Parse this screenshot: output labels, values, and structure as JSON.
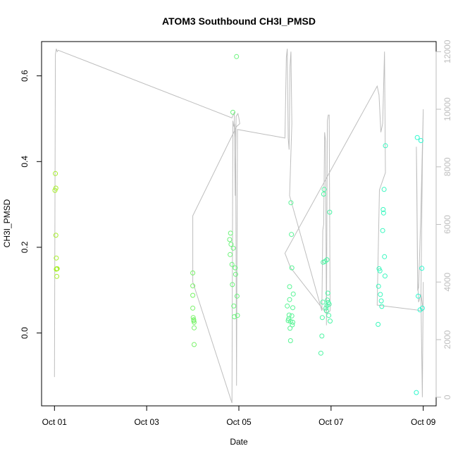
{
  "chart_data": {
    "type": "scatter",
    "title": "ATOM3 Southbound CH3I_PMSD",
    "xlabel": "Date",
    "ylabel": "CH3I_PMSD",
    "x_ticks": [
      {
        "day": 1,
        "label": "Oct 01"
      },
      {
        "day": 3,
        "label": "Oct 03"
      },
      {
        "day": 5,
        "label": "Oct 05"
      },
      {
        "day": 7,
        "label": "Oct 07"
      },
      {
        "day": 9,
        "label": "Oct 09"
      }
    ],
    "y_ticks": [
      0.0,
      0.2,
      0.4,
      0.6
    ],
    "y_tick_labels": [
      "0.0",
      "0.2",
      "0.4",
      "0.6"
    ],
    "y_right_ticks": [
      0,
      2000,
      4000,
      6000,
      8000,
      10000,
      12000
    ],
    "y_right_tick_labels": [
      "0",
      "2000",
      "4000",
      "6000",
      "8000",
      "10000",
      "12000"
    ],
    "xlim": [
      0.72,
      9.28
    ],
    "ylim": [
      -0.17,
      0.68
    ],
    "y_right_lim": [
      -300,
      12350
    ],
    "grid": false,
    "legend": "none",
    "colors": {
      "line": "#bebebe",
      "right_axis": "#bebebe",
      "point_ramp": [
        "#a6ee2a",
        "#2cf8d0"
      ]
    },
    "series": [
      {
        "kind": "points",
        "x": [
          1.01,
          1.02,
          1.03,
          1.03,
          1.04,
          1.04,
          1.05,
          1.05,
          1.06,
          4.0,
          4.0,
          4.0,
          4.0,
          4.01,
          4.02,
          4.02,
          4.03,
          4.03,
          4.03,
          4.8,
          4.81,
          4.82,
          4.83,
          4.85,
          4.86,
          4.87,
          4.88,
          4.89,
          4.9,
          4.92,
          4.93,
          4.95,
          4.96,
          4.97,
          6.05,
          6.07,
          6.08,
          6.09,
          6.1,
          6.1,
          6.11,
          6.12,
          6.12,
          6.13,
          6.14,
          6.15,
          6.15,
          6.16,
          6.17,
          6.17,
          6.18,
          6.78,
          6.8,
          6.81,
          6.82,
          6.83,
          6.84,
          6.85,
          6.87,
          6.89,
          6.9,
          6.91,
          6.91,
          6.92,
          6.93,
          6.94,
          6.95,
          6.96,
          6.97,
          6.98,
          8.02,
          8.03,
          8.04,
          8.06,
          8.07,
          8.09,
          8.1,
          8.12,
          8.13,
          8.14,
          8.15,
          8.16,
          8.17,
          8.18,
          8.85,
          8.87,
          8.89,
          8.93,
          8.95,
          8.97,
          8.98
        ],
        "y": [
          0.333,
          0.372,
          0.338,
          0.228,
          0.175,
          0.149,
          0.15,
          0.132,
          0.15,
          0.14,
          0.11,
          0.088,
          0.058,
          0.036,
          0.029,
          0.031,
          0.025,
          0.012,
          -0.027,
          0.218,
          0.183,
          0.233,
          0.207,
          0.16,
          0.113,
          0.515,
          0.198,
          0.063,
          0.038,
          0.152,
          0.137,
          0.645,
          0.086,
          0.041,
          0.063,
          0.029,
          0.033,
          0.042,
          0.078,
          0.108,
          0.011,
          0.027,
          -0.018,
          0.304,
          0.23,
          0.152,
          0.04,
          0.019,
          0.059,
          0.025,
          0.091,
          -0.047,
          -0.007,
          0.036,
          0.072,
          0.165,
          0.324,
          0.335,
          0.167,
          0.058,
          0.052,
          0.064,
          0.171,
          0.077,
          0.093,
          0.071,
          0.041,
          0.067,
          0.282,
          0.028,
          0.02,
          0.109,
          0.15,
          0.145,
          0.09,
          0.075,
          0.062,
          0.239,
          0.288,
          0.28,
          0.335,
          0.178,
          0.133,
          0.437,
          -0.139,
          0.456,
          0.086,
          0.054,
          0.449,
          0.151,
          0.058
        ]
      },
      {
        "kind": "line",
        "axis": "right",
        "x": [
          1.0,
          1.02,
          1.04,
          1.06,
          1.08,
          4.85,
          4.86,
          4.88,
          4.9,
          4.92,
          4.94,
          4.96,
          4.98,
          5.0,
          5.02,
          4.95,
          4.0,
          4.0,
          4.85,
          4.87,
          4.89,
          4.91,
          4.93,
          4.95,
          4.97,
          6.0,
          6.03,
          6.05,
          6.07,
          6.09,
          6.11,
          6.13,
          6.15,
          6.1,
          6.8,
          6.82,
          6.84,
          6.86,
          6.88,
          6.9,
          6.92,
          6.94,
          6.96,
          6.98,
          6.9,
          6.12,
          6.0,
          8.0,
          8.04,
          8.08,
          8.12,
          8.16,
          8.18,
          8.05,
          8.0,
          9.0,
          8.95,
          8.9,
          8.88,
          8.86,
          8.85,
          8.88,
          8.9,
          8.95,
          9.0,
          8.98,
          8.95,
          8.98,
          9.0
        ],
        "y": [
          700,
          11900,
          12100,
          12000,
          12050,
          9700,
          9750,
          9800,
          9900,
          7000,
          9750,
          9800,
          9850,
          9700,
          9500,
          9400,
          6300,
          4000,
          -200,
          9600,
          9400,
          9500,
          9000,
          400,
          9300,
          9000,
          11800,
          12100,
          9000,
          8600,
          11500,
          12000,
          9500,
          7000,
          3000,
          5800,
          6000,
          9200,
          8900,
          2500,
          9600,
          9800,
          9800,
          3000,
          2900,
          4500,
          5000,
          10800,
          10500,
          9200,
          9500,
          12000,
          7800,
          7200,
          3200,
          3000,
          3600,
          3300,
          4000,
          7700,
          8700,
          3700,
          3800,
          6500,
          10000,
          8100,
          3500,
          0,
          4000
        ]
      }
    ]
  }
}
